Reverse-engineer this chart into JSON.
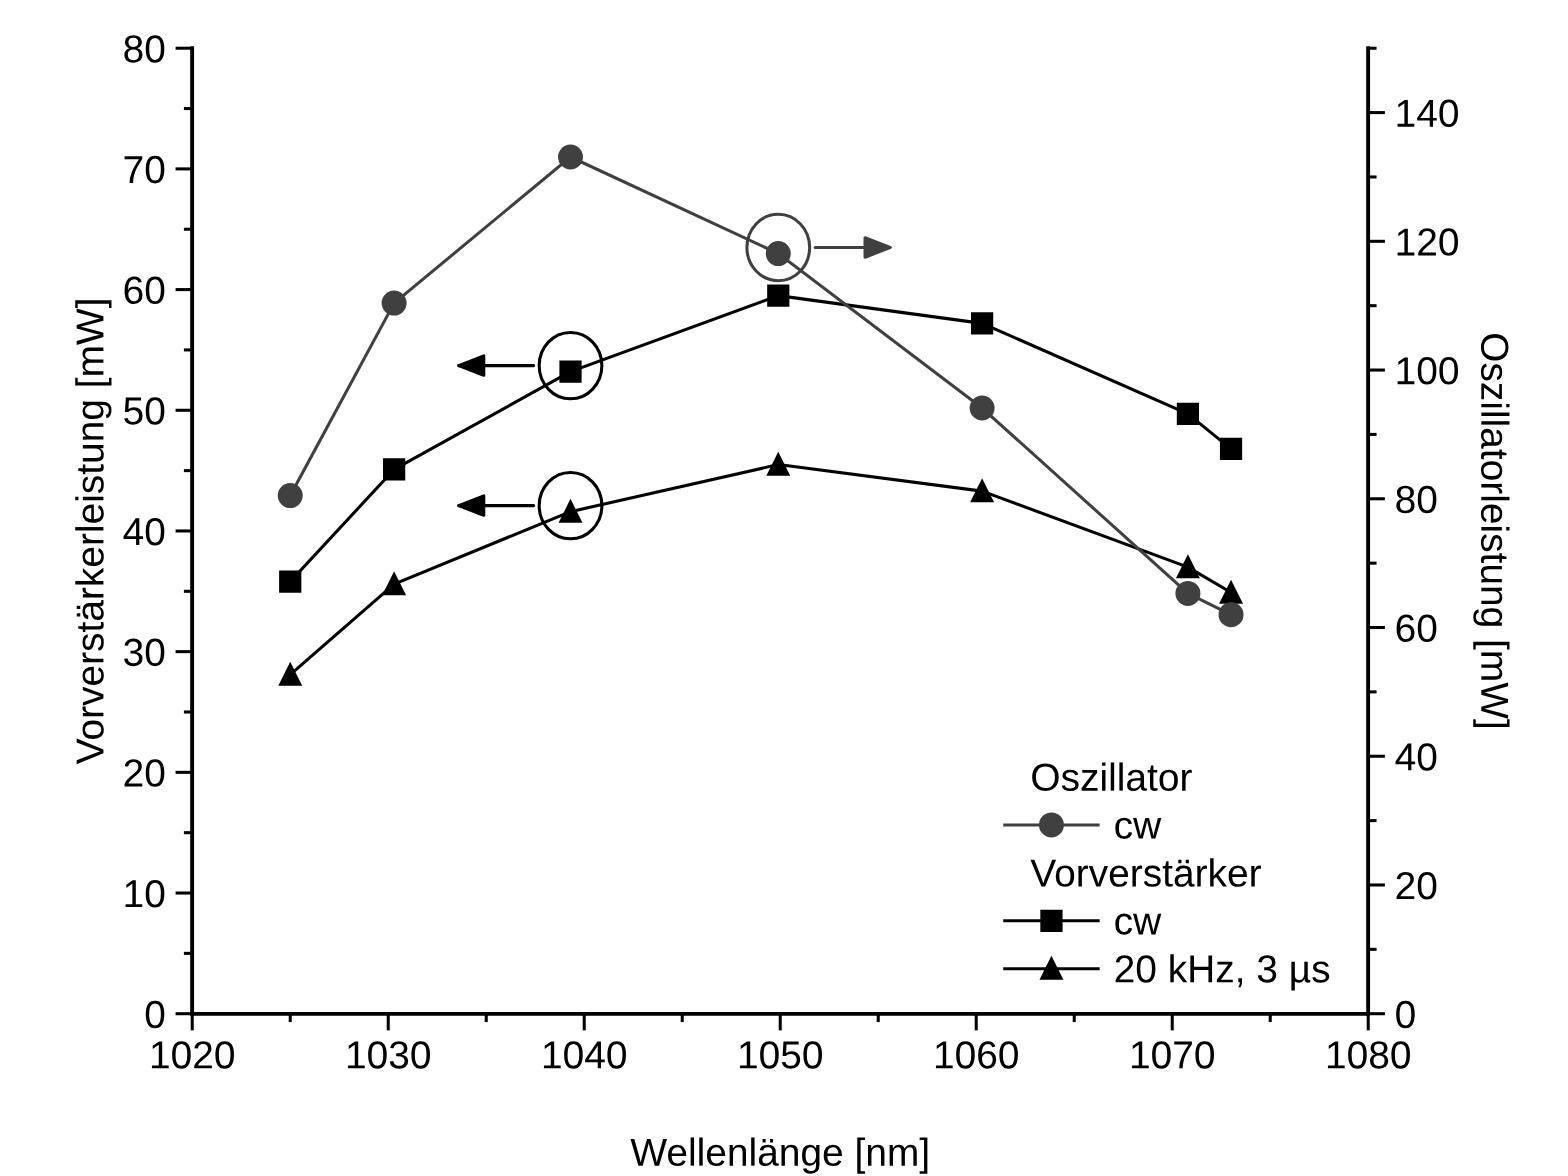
{
  "chart_data": {
    "type": "line",
    "xlabel": "Wellenlänge [nm]",
    "ylabel": "Vorverstärkerleistung [mW]",
    "y2label": "Oszillatorleistung [mW]",
    "legend_title": "Oszillator",
    "annotations": [
      "Vorverstärker"
    ],
    "series": [
      {
        "name": "cw",
        "color": "#404040",
        "marker": "circle",
        "axis": "y2",
        "x": [
          1025.0,
          1030.3,
          1039.3,
          1049.9,
          1060.3,
          1070.8,
          1073.0
        ],
        "values": [
          80.5,
          110.4,
          133.1,
          118.1,
          94.1,
          65.3,
          62.0
        ]
      },
      {
        "name": "cw",
        "color": "#000000",
        "marker": "square",
        "x": [
          1025.0,
          1030.3,
          1039.3,
          1049.9,
          1060.3,
          1070.8,
          1073.0
        ],
        "values": [
          35.8,
          45.1,
          53.2,
          59.5,
          57.2,
          49.7,
          46.8
        ]
      },
      {
        "name": "20 kHz, 3 µs",
        "color": "#000000",
        "marker": "triangle",
        "x": [
          1025.0,
          1030.3,
          1039.3,
          1049.9,
          1060.3,
          1070.8,
          1073.0
        ],
        "values": [
          28.1,
          35.6,
          41.6,
          45.5,
          43.3,
          37.0,
          34.9
        ]
      }
    ],
    "xlim": [
      1020,
      1080
    ],
    "xticks": [
      1020,
      1030,
      1040,
      1050,
      1060,
      1070,
      1080
    ],
    "ylim": [
      0,
      80
    ],
    "yticks": [
      0,
      10,
      20,
      30,
      40,
      50,
      60,
      70,
      80
    ],
    "y2lim": [
      0,
      150
    ],
    "y2ticks": [
      0,
      20,
      40,
      60,
      80,
      100,
      120,
      140
    ],
    "grid": false,
    "legend": "bottom right",
    "line_style": "solid"
  }
}
